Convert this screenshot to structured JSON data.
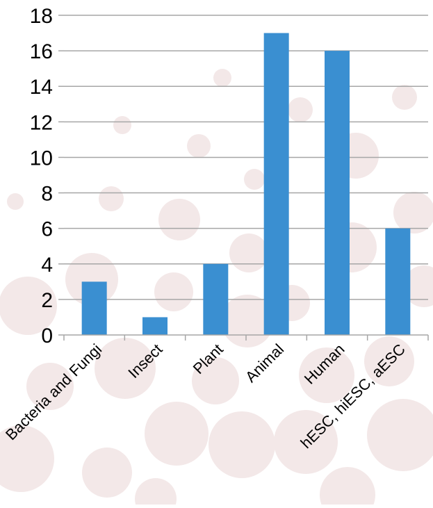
{
  "chart_data": {
    "type": "bar",
    "title": "",
    "xlabel": "",
    "ylabel": "",
    "categories": [
      "Bacteria and Fungi",
      "Insect",
      "Plant",
      "Animal",
      "Human",
      "hESC, hiESC, aESC"
    ],
    "values": [
      3,
      1,
      4,
      17,
      16,
      6
    ],
    "ylim": [
      0,
      18
    ],
    "yticks": [
      0,
      2,
      4,
      6,
      8,
      10,
      12,
      14,
      16,
      18
    ],
    "grid": true,
    "legend": "none",
    "bar_color": "#3a8fd1",
    "grid_color": "#a6a6a6",
    "background_dot_color": "#f3e8e8"
  }
}
